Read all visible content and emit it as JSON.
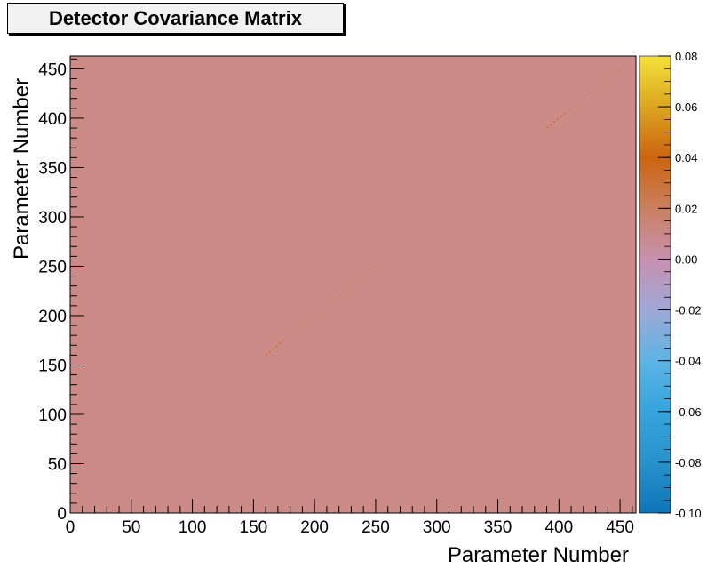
{
  "chart_data": {
    "type": "heatmap",
    "title": "Detector Covariance Matrix",
    "xlabel": "Parameter Number",
    "ylabel": "Parameter Number",
    "xlim": [
      0,
      463
    ],
    "ylim": [
      0,
      463
    ],
    "x_ticks": [
      0,
      50,
      100,
      150,
      200,
      250,
      300,
      350,
      400,
      450
    ],
    "y_ticks": [
      0,
      50,
      100,
      150,
      200,
      250,
      300,
      350,
      400,
      450
    ],
    "background_value": 0.0,
    "diagonal_segments": [
      {
        "from": 160,
        "to": 175,
        "value": 0.02
      },
      {
        "from": 175,
        "to": 250,
        "value": 0.006
      },
      {
        "from": 390,
        "to": 405,
        "value": 0.03
      },
      {
        "from": 405,
        "to": 455,
        "value": 0.01
      }
    ],
    "colorbar": {
      "range": [
        -0.1,
        0.08
      ],
      "ticks": [
        0.08,
        0.06,
        0.04,
        0.02,
        0.0,
        -0.02,
        -0.04,
        -0.06,
        -0.08,
        -0.1
      ],
      "tick_labels": [
        "0.08",
        "0.06",
        "0.04",
        "0.02",
        "0.00",
        "-0.02",
        "-0.04",
        "-0.06",
        "-0.08",
        "-0.10"
      ],
      "colors": [
        "#f4e13a",
        "#dba520",
        "#cc6410",
        "#c98060",
        "#c890b0",
        "#9fa8d8",
        "#5cb4e4",
        "#36a4dc",
        "#2892cc",
        "#0e76b8"
      ]
    },
    "grid": false
  }
}
